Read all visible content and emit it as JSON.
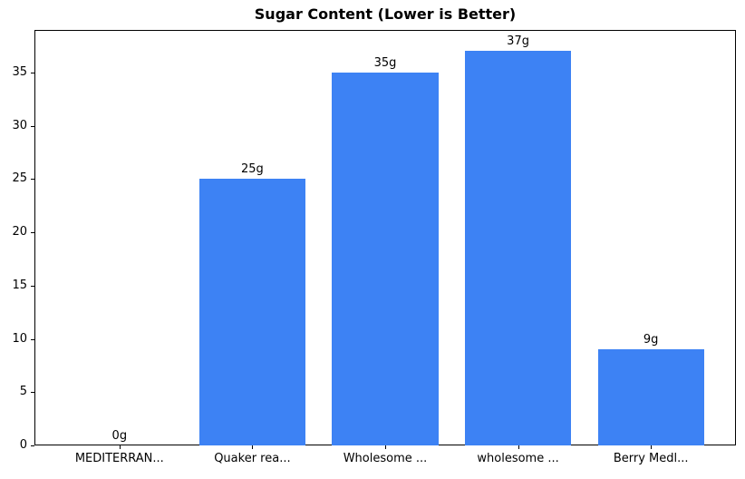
{
  "chart_data": {
    "type": "bar",
    "title": "Sugar Content (Lower is Better)",
    "categories": [
      "MEDITERRAN...",
      "Quaker rea...",
      "Wholesome ...",
      "wholesome ...",
      "Berry Medl..."
    ],
    "values": [
      0,
      25,
      35,
      37,
      9
    ],
    "value_labels": [
      "0g",
      "25g",
      "35g",
      "37g",
      "9g"
    ],
    "xlabel": "",
    "ylabel": "",
    "ylim": [
      0,
      39
    ],
    "yticks": [
      0,
      5,
      10,
      15,
      20,
      25,
      30,
      35
    ],
    "grid": false,
    "legend": null,
    "bar_color": "#3d82f4",
    "bar_width_ratio": 0.8
  }
}
